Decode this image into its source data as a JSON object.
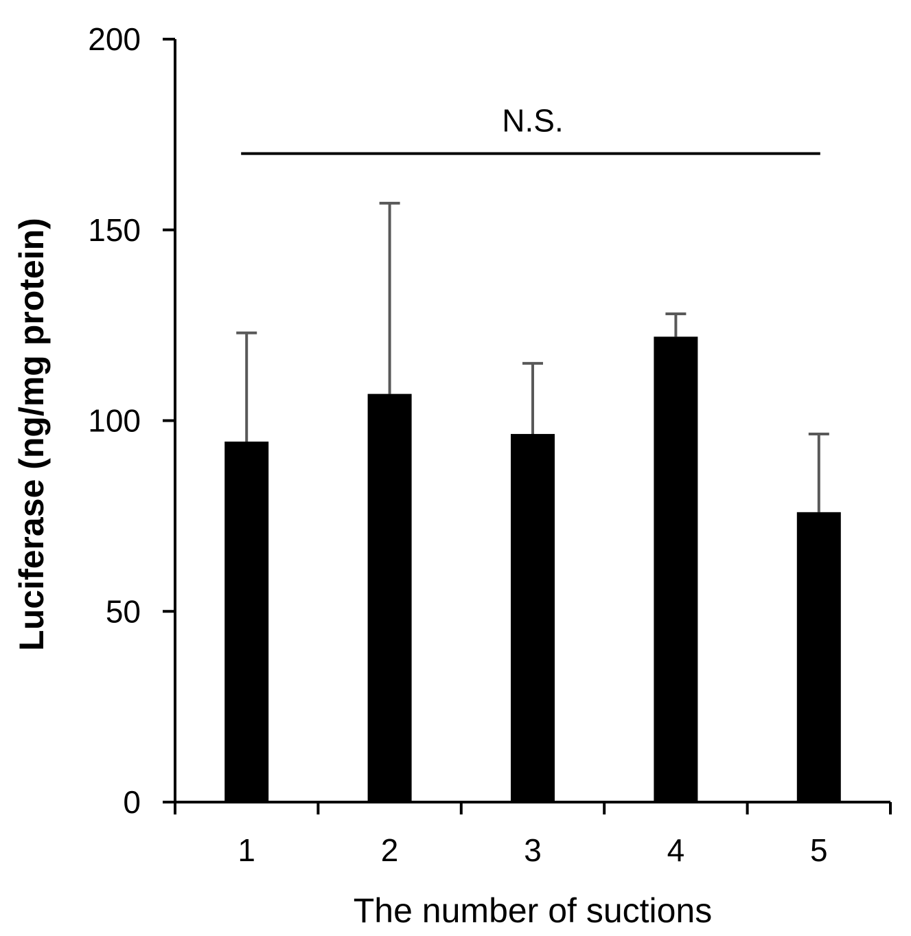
{
  "chart_data": {
    "type": "bar",
    "categories": [
      "1",
      "2",
      "3",
      "4",
      "5"
    ],
    "series": [
      {
        "values": [
          94.5,
          107,
          96.5,
          122,
          76
        ],
        "error_upper": [
          123,
          157,
          115,
          128,
          96.5
        ]
      }
    ],
    "xlabel": "The number of suctions",
    "ylabel": "Luciferase (ng/mg protein)",
    "ylim": [
      0,
      200
    ],
    "yticks": [
      "0",
      "50",
      "100",
      "150",
      "200"
    ],
    "annotation": {
      "text": "N.S.",
      "span": [
        "1",
        "5"
      ],
      "y": 170
    },
    "grid": false,
    "legend": "none",
    "colors": {
      "bar": "#000000",
      "error_bar": "#595959",
      "axis": "#000000"
    }
  }
}
